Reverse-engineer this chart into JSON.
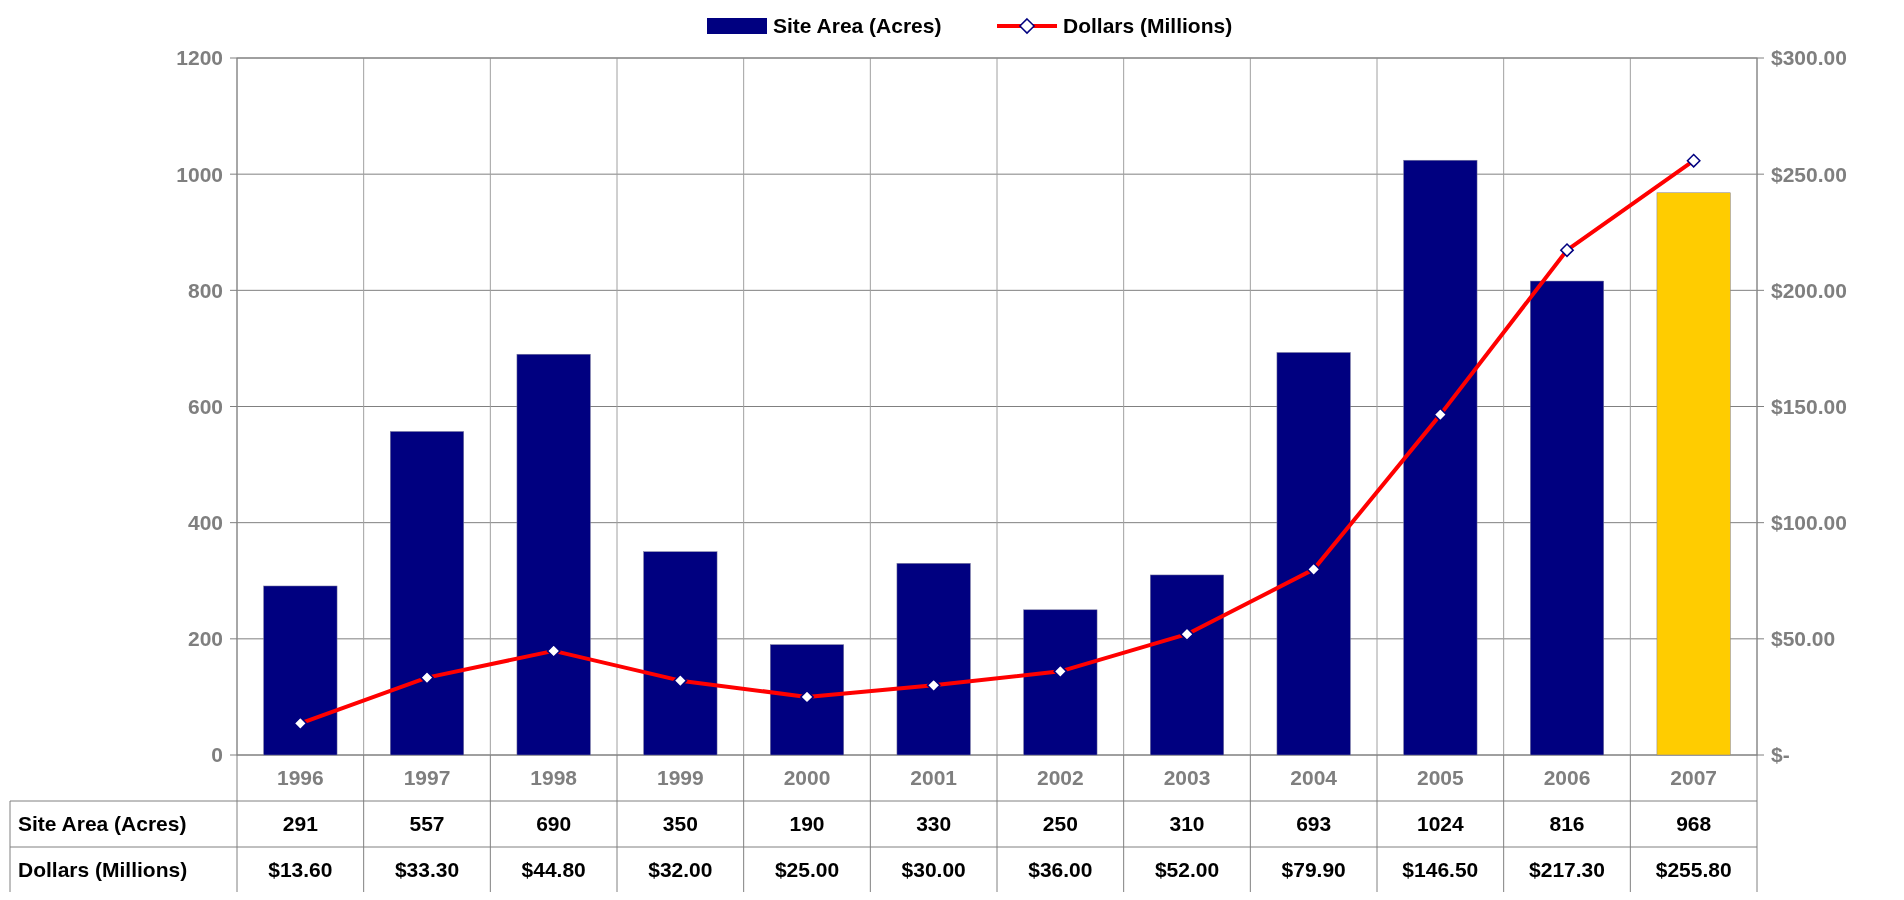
{
  "chart_data": {
    "type": "bar",
    "categories": [
      "1996",
      "1997",
      "1998",
      "1999",
      "2000",
      "2001",
      "2002",
      "2003",
      "2004",
      "2005",
      "2006",
      "2007"
    ],
    "series": [
      {
        "name": "Site Area (Acres)",
        "colors": [
          "#000080",
          "#000080",
          "#000080",
          "#000080",
          "#000080",
          "#000080",
          "#000080",
          "#000080",
          "#000080",
          "#000080",
          "#000080",
          "#ffcc00"
        ],
        "values": [
          291,
          557,
          690,
          350,
          190,
          330,
          250,
          310,
          693,
          1024,
          816,
          968
        ],
        "value_labels": [
          "291",
          "557",
          "690",
          "350",
          "190",
          "330",
          "250",
          "310",
          "693",
          "1024",
          "816",
          "968"
        ]
      },
      {
        "name": "Dollars (Millions)",
        "type": "line",
        "axis": "y2",
        "color": "#ff0000",
        "marker": "diamond",
        "values": [
          13.6,
          33.3,
          44.8,
          32,
          25,
          30,
          36,
          52,
          79.9,
          146.5,
          217.3,
          255.8
        ],
        "value_labels": [
          "$13.60",
          "$33.30",
          "$44.80",
          "$32.00",
          "$25.00",
          "$30.00",
          "$36.00",
          "$52.00",
          "$79.90",
          "$146.50",
          "$217.30",
          "$255.80"
        ]
      }
    ],
    "ylim": [
      0,
      1200
    ],
    "yticks": [
      0,
      200,
      400,
      600,
      800,
      1000,
      1200
    ],
    "y2lim": [
      0,
      300
    ],
    "y2ticks": [
      {
        "value": 0,
        "label": "$-"
      },
      {
        "value": 50,
        "label": "$50.00"
      },
      {
        "value": 100,
        "label": "$100.00"
      },
      {
        "value": 150,
        "label": "$150.00"
      },
      {
        "value": 200,
        "label": "$200.00"
      },
      {
        "value": 250,
        "label": "$250.00"
      },
      {
        "value": 300,
        "label": "$300.00"
      }
    ],
    "grid": true,
    "legend": "top"
  }
}
